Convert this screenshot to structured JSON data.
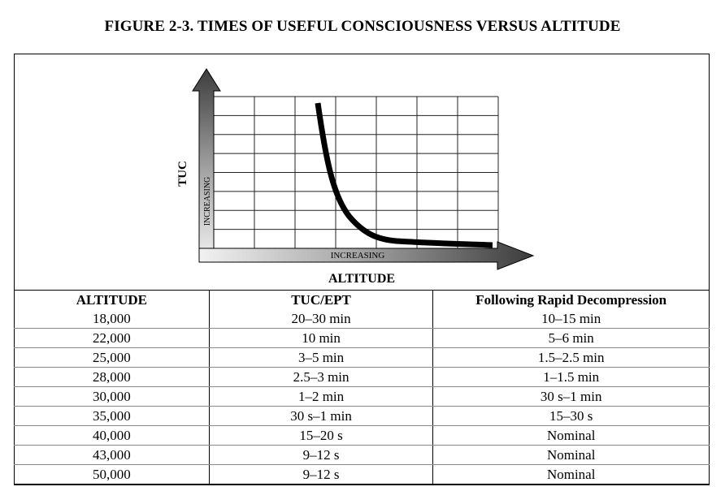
{
  "figure": {
    "title": "FIGURE 2-3. TIMES OF USEFUL CONSCIOUSNESS VERSUS ALTITUDE"
  },
  "chart_data": {
    "type": "line",
    "title": "",
    "xlabel": "ALTITUDE",
    "ylabel": "TUC",
    "x_arrow_label": "INCREASING",
    "y_arrow_label": "INCREASING",
    "grid": true,
    "description_curve": "TUC decreases steeply then levels off as altitude increases"
  },
  "table": {
    "headers": [
      "ALTITUDE",
      "TUC/EPT",
      "Following Rapid Decompression"
    ],
    "rows": [
      [
        "18,000",
        "20–30 min",
        "10–15 min"
      ],
      [
        "22,000",
        "10 min",
        "5–6 min"
      ],
      [
        "25,000",
        "3–5 min",
        "1.5–2.5 min"
      ],
      [
        "28,000",
        "2.5–3 min",
        "1–1.5 min"
      ],
      [
        "30,000",
        "1–2 min",
        "30 s–1 min"
      ],
      [
        "35,000",
        "30 s–1 min",
        "15–30 s"
      ],
      [
        "40,000",
        "15–20 s",
        "Nominal"
      ],
      [
        "43,000",
        "9–12 s",
        "Nominal"
      ],
      [
        "50,000",
        "9–12 s",
        "Nominal"
      ]
    ]
  }
}
